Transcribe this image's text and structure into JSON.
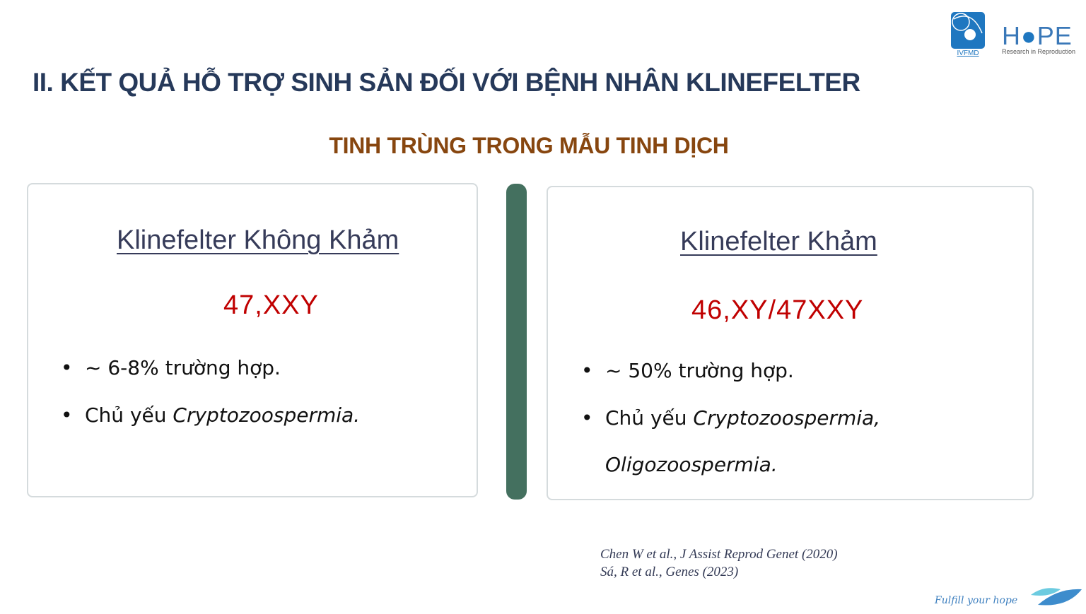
{
  "slide": {
    "title": "II. KẾT QUẢ HỖ TRỢ SINH SẢN ĐỐI VỚI BỆNH NHÂN KLINEFELTER",
    "subtitle": "TINH TRÙNG TRONG MẪU TINH DỊCH",
    "left_card": {
      "heading": "Klinefelter Không Khảm",
      "karyotype": "47,XXY",
      "bullets": [
        {
          "text": "~ 6-8% trường hợp."
        },
        {
          "prefix": "Chủ yếu ",
          "italic": "Cryptozoospermia."
        }
      ]
    },
    "right_card": {
      "heading": "Klinefelter Khảm",
      "karyotype": "46,XY/47XXY",
      "bullets": [
        {
          "text": "~ 50% trường hợp."
        },
        {
          "prefix": "Chủ yếu ",
          "italic": "Cryptozoospermia,",
          "continuation": "Oligozoospermia."
        }
      ]
    },
    "references": [
      "Chen W et al., J Assist Reprod Genet (2020)",
      "Sá, R et al., Genes (2023)"
    ],
    "logos": {
      "ivfmd": "IVFMD",
      "hope": "HOPE",
      "hope_tagline": "Research in Reproduction"
    },
    "footer_tagline": "Fulfill your hope",
    "colors": {
      "title": "#26395a",
      "subtitle": "#87460f",
      "karyotype": "#c00000",
      "divider": "#44705f"
    }
  }
}
